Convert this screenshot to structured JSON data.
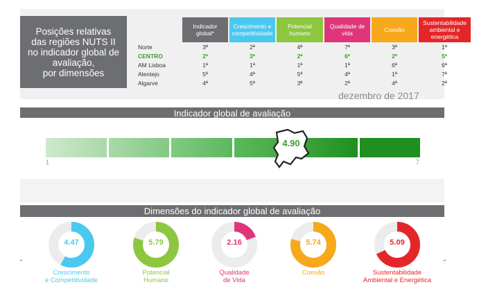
{
  "title": "Posições relativas\ndas regiões NUTS II\nno indicador global de\navaliação,\npor dimensões",
  "date_label": "dezembro de 2017",
  "colors": {
    "global": "#6d6e71",
    "competitiveness": "#4bc8f0",
    "human_potential": "#8dc63f",
    "quality_of_life": "#e0357b",
    "cohesion": "#f7a81b",
    "sustainability": "#e52629",
    "highlight_text": "#3f9b2f"
  },
  "table": {
    "columns": [
      "Indicador global*",
      "Crescimento e competitividade",
      "Potencial humano",
      "Qualidade de vida",
      "Coesão",
      "Sustentabilidade ambiental e energética"
    ],
    "rows": [
      {
        "region": "Norte",
        "values": [
          "3ª",
          "2ª",
          "4ª",
          "7ª",
          "3ª",
          "1ª"
        ]
      },
      {
        "region": "CENTRO",
        "values": [
          "2ª",
          "3ª",
          "2ª",
          "6ª",
          "2ª",
          "5ª"
        ]
      },
      {
        "region": "AM Lisboa",
        "values": [
          "1ª",
          "1ª",
          "1ª",
          "1ª",
          "6ª",
          "6ª"
        ]
      },
      {
        "region": "Alentejo",
        "values": [
          "5ª",
          "4ª",
          "5ª",
          "4ª",
          "1ª",
          "7ª"
        ]
      },
      {
        "region": "Algarve",
        "values": [
          "4ª",
          "5ª",
          "3ª",
          "2ª",
          "4ª",
          "2ª"
        ]
      }
    ]
  },
  "gauge": {
    "header": "Indicador global de avaliação",
    "min_label": "1",
    "max_label": "7",
    "min": 1,
    "max": 7,
    "value_label": "4.90"
  },
  "dimensions_header": "Dimensões do indicador global de avaliação",
  "chart_data": [
    {
      "type": "bar",
      "title": "Indicador global de avaliação",
      "range": [
        1,
        7
      ],
      "values": [
        4.9
      ],
      "categories": [
        "CENTRO"
      ]
    },
    {
      "type": "pie",
      "title": "Dimensões do indicador global de avaliação",
      "range": [
        1,
        7
      ],
      "categories": [
        "Crescimento\ne Competitividade",
        "Potencial\nHumano",
        "Qualidade\nde Vida",
        "Coesão",
        "Sustentabilidade\nAmbiental e Energética"
      ],
      "values": [
        4.47,
        5.79,
        2.16,
        5.74,
        5.09
      ],
      "value_labels": [
        "4.47",
        "5.79",
        "2.16",
        "5.74",
        "5.09"
      ],
      "colors": [
        "#4bc8f0",
        "#8dc63f",
        "#e0357b",
        "#f7a81b",
        "#e52629"
      ]
    }
  ]
}
